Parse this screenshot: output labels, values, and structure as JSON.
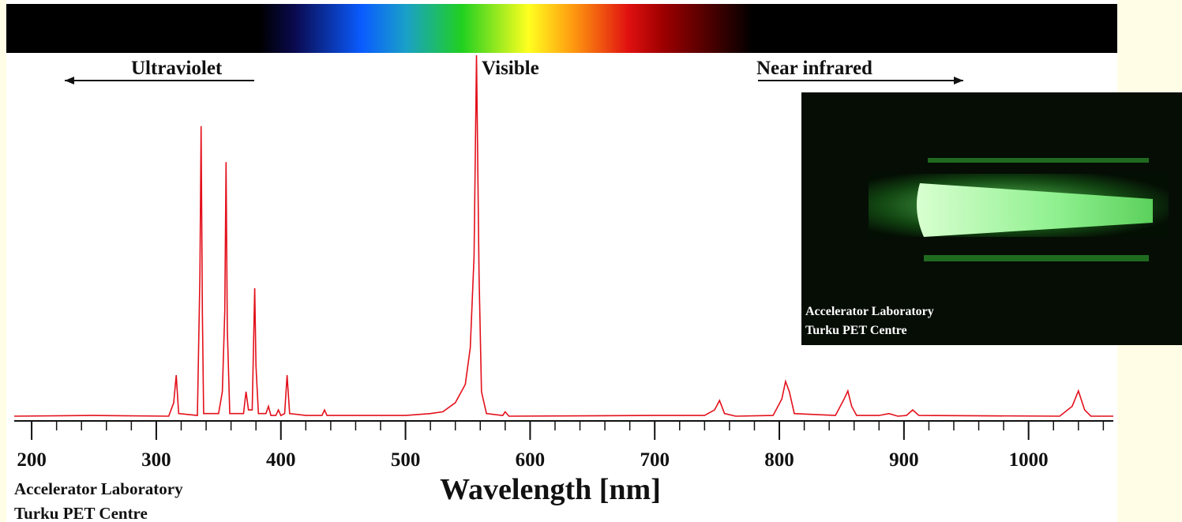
{
  "chart_data": {
    "type": "line",
    "annotations": [
      "Ultraviolet",
      "Visible",
      "Near infrared"
    ],
    "xlabel": "Wavelength [nm]",
    "credit": [
      "Accelerator Laboratory",
      "Turku PET Centre"
    ],
    "color": "#e3101b",
    "xlim": [
      186,
      1068
    ],
    "ylim": [
      0,
      100
    ],
    "xticks": [
      200,
      300,
      400,
      500,
      600,
      700,
      800,
      900,
      1000
    ],
    "x": [
      186,
      250,
      310,
      314,
      316,
      318,
      333,
      335,
      336,
      337,
      338,
      350,
      353,
      355,
      356,
      357,
      359,
      370,
      372,
      374,
      377,
      379,
      380,
      382,
      388,
      390,
      392,
      396,
      398,
      400,
      403,
      405,
      407,
      420,
      433,
      435,
      437,
      500,
      520,
      530,
      540,
      548,
      552,
      555,
      557,
      559,
      561,
      565,
      578,
      580,
      583,
      700,
      740,
      748,
      752,
      756,
      765,
      795,
      802,
      805,
      808,
      812,
      845,
      852,
      855,
      858,
      862,
      880,
      888,
      895,
      902,
      907,
      912,
      1025,
      1035,
      1040,
      1045,
      1050,
      1068
    ],
    "values": [
      1.3,
      1.5,
      1.3,
      5,
      12.5,
      2,
      1.5,
      40,
      80.6,
      30,
      2,
      2,
      8,
      30,
      70.8,
      25,
      2,
      2,
      8,
      3,
      3,
      36.3,
      15,
      2,
      2,
      4,
      1.5,
      1.5,
      3,
      1.5,
      2,
      12.5,
      2,
      1.5,
      1.5,
      3,
      1.5,
      1.5,
      2,
      2.5,
      5,
      10,
      20,
      45,
      100,
      40,
      8,
      2,
      1.5,
      2.5,
      1.3,
      1.5,
      1.5,
      3,
      5.6,
      2,
      1.3,
      1.5,
      6,
      10.8,
      8,
      2,
      1.5,
      6,
      8.2,
      4,
      1.5,
      1.5,
      2,
      1.3,
      1.5,
      3,
      1.5,
      1.3,
      4,
      8.2,
      3,
      1.3,
      1.3
    ]
  },
  "inset_photo": {
    "caption": [
      "Accelerator Laboratory",
      "Turku PET Centre"
    ]
  }
}
